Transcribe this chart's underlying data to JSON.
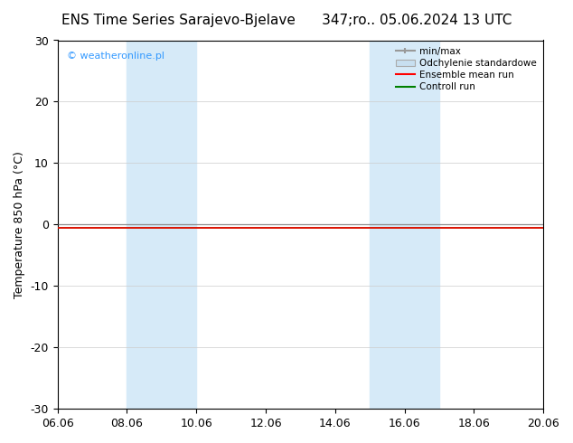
{
  "title_left": "ENS Time Series Sarajevo-Bjelave",
  "title_right": "347;ro.. 05.06.2024 13 UTC",
  "ylabel": "Temperature 850 hPa (°C)",
  "watermark": "© weatheronline.pl",
  "watermark_color": "#3399ff",
  "ylim": [
    -30,
    30
  ],
  "yticks": [
    -30,
    -20,
    -10,
    0,
    10,
    20,
    30
  ],
  "xlim_start": "06.06",
  "xlim_end": "20.06",
  "xtick_labels": [
    "06.06",
    "08.06",
    "10.06",
    "12.06",
    "14.06",
    "16.06",
    "18.06",
    "20.06"
  ],
  "xtick_positions": [
    0,
    2,
    4,
    6,
    8,
    10,
    12,
    14
  ],
  "shaded_regions": [
    {
      "xstart": 2,
      "xend": 4,
      "color": "#d6eaf8"
    },
    {
      "xstart": 9,
      "xend": 11,
      "color": "#d6eaf8"
    }
  ],
  "zero_line_y": 0,
  "control_run_y": -0.5,
  "ensemble_mean_y": -0.5,
  "legend_labels": [
    "min/max",
    "Odchylenie standardowe",
    "Ensemble mean run",
    "Controll run"
  ],
  "legend_colors": [
    "#aaaaaa",
    "#c8dff0",
    "#ff0000",
    "#008000"
  ],
  "background_color": "#ffffff",
  "plot_bg_color": "#ffffff",
  "title_fontsize": 11,
  "tick_fontsize": 9,
  "ylabel_fontsize": 9
}
